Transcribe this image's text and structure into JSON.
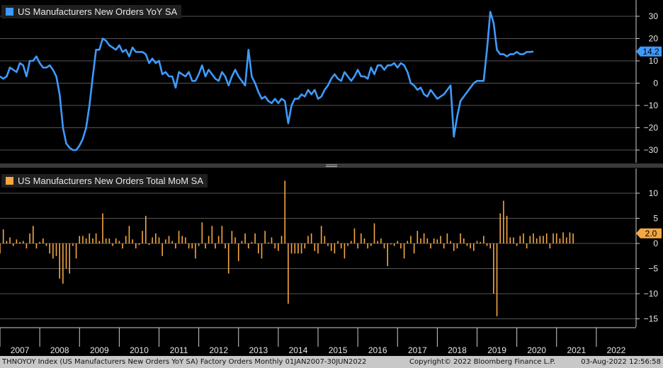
{
  "chart_data": [
    {
      "type": "line",
      "title": "US Manufacturers New Orders YoY SA",
      "legend": "top-left",
      "color": "#3d9bff",
      "ylim": [
        -35,
        35
      ],
      "yticks": [
        30,
        20,
        10,
        0,
        -10,
        -20,
        -30
      ],
      "last_value_label": "14.2",
      "x_start": 2007.0,
      "x_step": 0.08333,
      "values": [
        3,
        2,
        3,
        7,
        6,
        5,
        9,
        8,
        3,
        10,
        10,
        12,
        9,
        7,
        7,
        8,
        6,
        3,
        -5,
        -20,
        -27,
        -29,
        -30,
        -30,
        -28,
        -25,
        -20,
        -10,
        3,
        15,
        15,
        20,
        19,
        17,
        16,
        15,
        17,
        14,
        15,
        12,
        16,
        14,
        14,
        14,
        13,
        9,
        11,
        9,
        10,
        4,
        5,
        3,
        3,
        -2,
        5,
        4,
        3,
        5,
        1,
        1,
        4,
        8,
        3,
        6,
        4,
        2,
        1,
        5,
        3,
        -1,
        3,
        6,
        3,
        1,
        -1,
        15,
        3,
        0,
        -4,
        -7,
        -6,
        -8,
        -9,
        -7,
        -9,
        -7,
        -8,
        -18,
        -10,
        -7,
        -7,
        -5,
        -6,
        -3,
        -5,
        -3,
        -7,
        -6,
        -3,
        -1,
        2,
        4,
        2,
        1,
        5,
        3,
        1,
        3,
        6,
        3,
        3,
        2,
        7,
        4,
        8,
        8,
        6,
        8,
        8,
        9,
        7,
        9,
        8,
        5,
        0,
        -1,
        -3,
        -2,
        -5,
        -6,
        -3,
        -5,
        -7,
        -6,
        -5,
        -3,
        -1,
        -24,
        -15,
        -8,
        -6,
        -4,
        -2,
        0,
        1,
        1,
        1,
        15,
        32,
        27,
        15,
        13,
        13,
        12,
        13,
        13,
        14,
        13,
        13,
        14,
        14,
        14.2
      ]
    },
    {
      "type": "bar",
      "title": "US Manufacturers New Orders Total MoM SA",
      "legend": "top-left",
      "color": "#f5a742",
      "ylim": [
        -17,
        14
      ],
      "yticks": [
        10,
        5,
        0,
        -5,
        -10,
        -15
      ],
      "last_value_label": "2.0",
      "x_start": 2007.0,
      "x_step": 0.08333,
      "values": [
        -2,
        2.8,
        0.5,
        1.2,
        -0.5,
        0.8,
        0.3,
        0.5,
        -1,
        2,
        3.5,
        -1,
        0.3,
        1,
        -0.5,
        -2,
        -3,
        -2.5,
        -7,
        -8,
        -5,
        -6,
        -0.5,
        -3,
        1.5,
        1.5,
        1,
        2,
        1,
        2,
        0.5,
        6,
        1,
        1,
        -0.5,
        1,
        0.5,
        -1,
        1.5,
        3.5,
        0.8,
        -1,
        -0.3,
        2.5,
        5.5,
        -0.3,
        1.2,
        2,
        1.2,
        -2.5,
        0.8,
        1.5,
        0.5,
        -1,
        2.5,
        1.5,
        1.2,
        -1,
        -1,
        -3,
        -0.5,
        4.2,
        -1,
        1.5,
        3.5,
        -1,
        1.5,
        3.5,
        -1,
        -6,
        2.5,
        1.2,
        -3.5,
        0.5,
        2,
        -1,
        0.3,
        2,
        -2,
        -3,
        2.5,
        0.2,
        1.2,
        -1,
        -1.5,
        1.5,
        12.5,
        -12,
        -2,
        -2,
        -2,
        -2,
        -1,
        1.5,
        2,
        -1.5,
        -2,
        3.5,
        1.5,
        -0.5,
        -1.5,
        -2,
        0.5,
        -1,
        -3,
        -0.5,
        0.5,
        3,
        -1,
        2,
        1,
        -1,
        -0.5,
        4,
        0.5,
        1,
        -1,
        -4.5,
        -0.2,
        -0.5,
        0.5,
        -1,
        -3,
        0.5,
        1.5,
        -2,
        2.5,
        1,
        2,
        1,
        -1,
        1,
        0.8,
        1.5,
        -1,
        2,
        0.5,
        -1.5,
        -1,
        2,
        1,
        -0.5,
        -1,
        -1.5,
        0.5,
        0.3,
        1.5,
        -0.5,
        -1,
        -10,
        -14.5,
        6,
        8.5,
        5.5,
        1.2,
        1.2,
        -0.5,
        1.5,
        2,
        -1,
        1.5,
        2,
        1,
        1.5,
        1.5,
        2,
        -1,
        2,
        2,
        1,
        2.2,
        1.2,
        2.2,
        2
      ]
    }
  ],
  "x_axis": {
    "tick_labels": [
      "2007",
      "2008",
      "2009",
      "2010",
      "2011",
      "2012",
      "2013",
      "2014",
      "2015",
      "2016",
      "2017",
      "2018",
      "2019",
      "2020",
      "2021",
      "2022"
    ]
  },
  "footer": {
    "left": "THNOYOY Index (US Manufacturers New Orders YoY SA) Factory Orders  Monthly 01JAN2007-30JUN2022",
    "center": "Copyright© 2022 Bloomberg Finance L.P.",
    "right": "03-Aug-2022 12:56:58"
  }
}
